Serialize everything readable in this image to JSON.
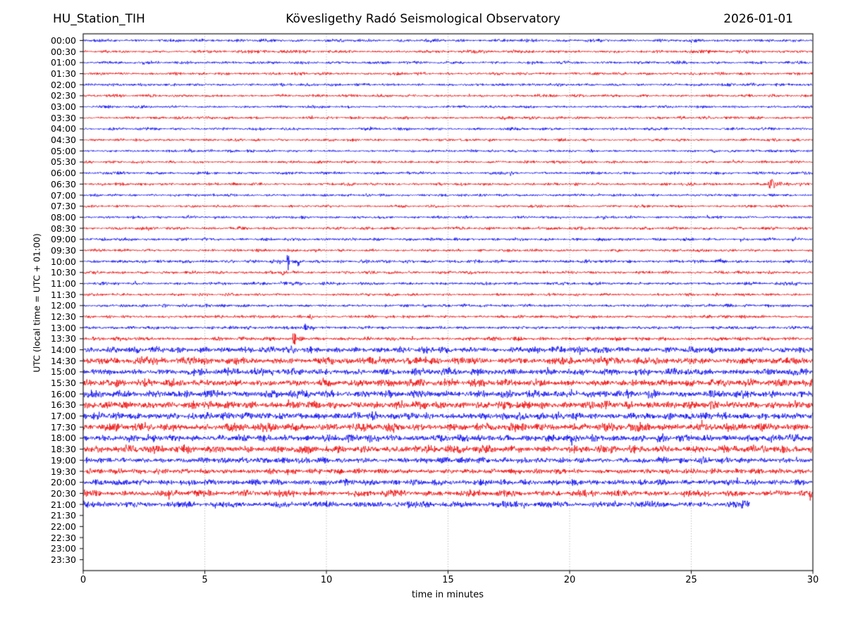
{
  "header": {
    "station": "HU_Station_TIH",
    "observatory": "Kövesligethy Radó Seismological Observatory",
    "date": "2026-01-01"
  },
  "chart_data": {
    "type": "line",
    "subtype": "helicorder-dayplot",
    "title": "HU_Station_TIH  Kövesligethy Radó Seismological Observatory  2026-01-01",
    "xlabel": "time in minutes",
    "ylabel": "UTC (local time = UTC + 01:00)",
    "xlim": [
      0,
      30
    ],
    "xticks": [
      0,
      5,
      10,
      15,
      20,
      25,
      30
    ],
    "grid": "vertical-dotted",
    "minutes_per_row": 30,
    "trace_colors": {
      "even_rows": "#0000ee",
      "odd_rows": "#ee0000"
    },
    "grid_color": "#999999",
    "axis_color": "#000000",
    "rows": [
      {
        "label": "00:00",
        "noise": 1.3,
        "end_minute": 30,
        "events": []
      },
      {
        "label": "00:30",
        "noise": 1.3,
        "end_minute": 30,
        "events": []
      },
      {
        "label": "01:00",
        "noise": 1.25,
        "end_minute": 30,
        "events": []
      },
      {
        "label": "01:30",
        "noise": 1.2,
        "end_minute": 30,
        "events": []
      },
      {
        "label": "02:00",
        "noise": 1.2,
        "end_minute": 30,
        "events": []
      },
      {
        "label": "02:30",
        "noise": 1.15,
        "end_minute": 30,
        "events": []
      },
      {
        "label": "03:00",
        "noise": 1.1,
        "end_minute": 30,
        "events": []
      },
      {
        "label": "03:30",
        "noise": 1.2,
        "end_minute": 30,
        "events": []
      },
      {
        "label": "04:00",
        "noise": 1.2,
        "end_minute": 30,
        "events": []
      },
      {
        "label": "04:30",
        "noise": 1.1,
        "end_minute": 30,
        "events": []
      },
      {
        "label": "05:00",
        "noise": 1.1,
        "end_minute": 30,
        "events": []
      },
      {
        "label": "05:30",
        "noise": 1.1,
        "end_minute": 30,
        "events": []
      },
      {
        "label": "06:00",
        "noise": 1.2,
        "end_minute": 30,
        "events": []
      },
      {
        "label": "06:30",
        "noise": 1.2,
        "end_minute": 30,
        "events": [
          {
            "type": "quake",
            "t": 28.15,
            "amp": 8.5,
            "tau": 0.5
          }
        ]
      },
      {
        "label": "07:00",
        "noise": 1.15,
        "end_minute": 30,
        "events": []
      },
      {
        "label": "07:30",
        "noise": 1.1,
        "end_minute": 30,
        "events": []
      },
      {
        "label": "08:00",
        "noise": 1.15,
        "end_minute": 30,
        "events": []
      },
      {
        "label": "08:30",
        "noise": 1.25,
        "end_minute": 30,
        "events": []
      },
      {
        "label": "09:00",
        "noise": 1.25,
        "end_minute": 30,
        "events": [
          {
            "type": "burst",
            "t": 29.3,
            "amp": 2.2,
            "w": 0.15
          }
        ]
      },
      {
        "label": "09:30",
        "noise": 1.15,
        "end_minute": 30,
        "events": []
      },
      {
        "label": "10:00",
        "noise": 1.4,
        "end_minute": 30,
        "events": [
          {
            "type": "burst",
            "t": 7.75,
            "amp": 2.5,
            "w": 0.12
          },
          {
            "type": "burst",
            "t": 8.42,
            "amp": 15,
            "w": 0.05
          },
          {
            "type": "burst",
            "t": 8.85,
            "amp": 5.5,
            "w": 0.08
          }
        ]
      },
      {
        "label": "10:30",
        "noise": 1.3,
        "end_minute": 30,
        "events": [
          {
            "type": "burst",
            "t": 8.2,
            "amp": 3.5,
            "w": 0.12
          }
        ]
      },
      {
        "label": "11:00",
        "noise": 1.3,
        "end_minute": 30,
        "events": [
          {
            "type": "burst",
            "t": 8.5,
            "amp": 1.8,
            "w": 0.3
          }
        ]
      },
      {
        "label": "11:30",
        "noise": 1.15,
        "end_minute": 30,
        "events": []
      },
      {
        "label": "12:00",
        "noise": 1.25,
        "end_minute": 30,
        "events": []
      },
      {
        "label": "12:30",
        "noise": 1.2,
        "end_minute": 30,
        "events": [
          {
            "type": "burst",
            "t": 8.95,
            "amp": 3,
            "w": 0.06
          },
          {
            "type": "burst",
            "t": 9.35,
            "amp": 5.5,
            "w": 0.07
          }
        ]
      },
      {
        "label": "13:00",
        "noise": 1.35,
        "end_minute": 30,
        "events": [
          {
            "type": "burst",
            "t": 8.75,
            "amp": 2.5,
            "w": 0.08
          },
          {
            "type": "burst",
            "t": 9.15,
            "amp": 5,
            "w": 0.07
          },
          {
            "type": "burst",
            "t": 9.45,
            "amp": 2.5,
            "w": 0.1
          }
        ]
      },
      {
        "label": "13:30",
        "noise": 1.5,
        "end_minute": 30,
        "events": [
          {
            "type": "burst",
            "t": 8.68,
            "amp": 9.5,
            "w": 0.09
          },
          {
            "type": "burst",
            "t": 8.95,
            "amp": 4,
            "w": 0.15
          }
        ]
      },
      {
        "label": "14:00",
        "noise": 2.6,
        "end_minute": 30,
        "events": []
      },
      {
        "label": "14:30",
        "noise": 3.0,
        "end_minute": 30,
        "events": []
      },
      {
        "label": "15:00",
        "noise": 2.8,
        "end_minute": 30,
        "events": [
          {
            "type": "burst",
            "t": 24.8,
            "amp": 5,
            "w": 0.12
          }
        ]
      },
      {
        "label": "15:30",
        "noise": 3.0,
        "end_minute": 30,
        "events": []
      },
      {
        "label": "16:00",
        "noise": 3.1,
        "end_minute": 30,
        "events": []
      },
      {
        "label": "16:30",
        "noise": 3.2,
        "end_minute": 30,
        "events": []
      },
      {
        "label": "17:00",
        "noise": 3.0,
        "end_minute": 30,
        "events": []
      },
      {
        "label": "17:30",
        "noise": 3.2,
        "end_minute": 30,
        "events": []
      },
      {
        "label": "18:00",
        "noise": 3.0,
        "end_minute": 30,
        "events": []
      },
      {
        "label": "18:30",
        "noise": 3.1,
        "end_minute": 30,
        "events": []
      },
      {
        "label": "19:00",
        "noise": 2.4,
        "end_minute": 30,
        "events": []
      },
      {
        "label": "19:30",
        "noise": 2.2,
        "end_minute": 30,
        "events": []
      },
      {
        "label": "20:00",
        "noise": 2.5,
        "end_minute": 30,
        "events": []
      },
      {
        "label": "20:30",
        "noise": 2.7,
        "end_minute": 30,
        "events": []
      },
      {
        "label": "21:00",
        "noise": 2.6,
        "end_minute": 27.4,
        "events": []
      },
      {
        "label": "21:30",
        "noise": 0,
        "end_minute": 0,
        "no_data": true,
        "events": []
      },
      {
        "label": "22:00",
        "noise": 0,
        "end_minute": 0,
        "no_data": true,
        "events": []
      },
      {
        "label": "22:30",
        "noise": 0,
        "end_minute": 0,
        "no_data": true,
        "events": []
      },
      {
        "label": "23:00",
        "noise": 0,
        "end_minute": 0,
        "no_data": true,
        "events": []
      },
      {
        "label": "23:30",
        "noise": 0,
        "end_minute": 0,
        "no_data": true,
        "events": []
      }
    ]
  }
}
